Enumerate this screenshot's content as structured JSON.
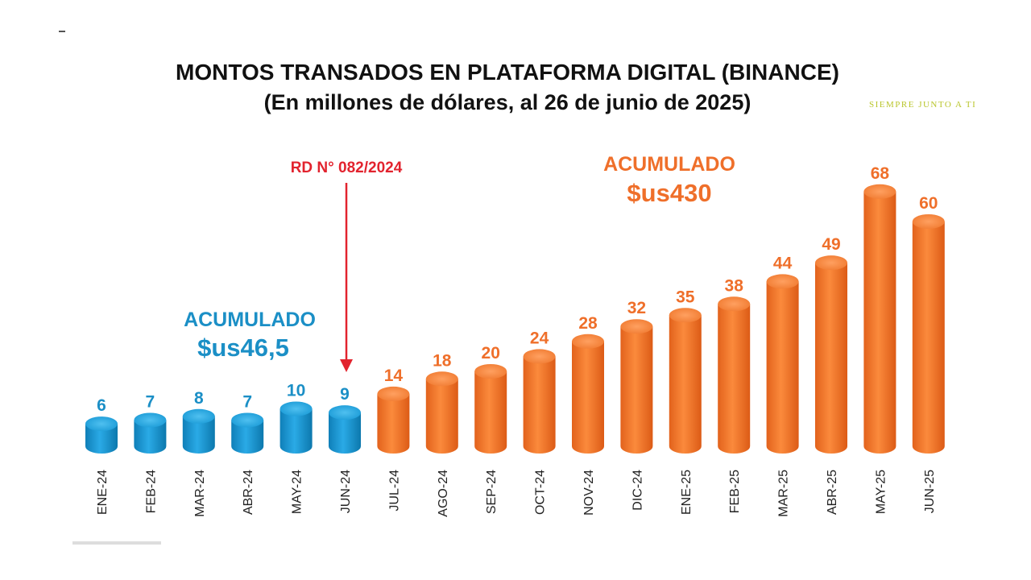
{
  "title": "MONTOS TRANSADOS EN PLATAFORMA DIGITAL (BINANCE)",
  "subtitle": "(En millones de dólares, al 26 de junio de 2025)",
  "slogan": "SIEMPRE JUNTO A TI",
  "annotations": {
    "rd_label": "RD N° 082/2024",
    "acum_blue_label": "ACUMULADO",
    "acum_blue_value": "$us46,5",
    "acum_orange_label": "ACUMULADO",
    "acum_orange_value": "$us430"
  },
  "colors": {
    "blue": "#1a9ad6",
    "orange": "#f07a30",
    "red": "#e2232e",
    "blue_text": "#1b8fc6",
    "orange_text": "#ef6f2a"
  },
  "chart_data": {
    "type": "bar",
    "title": "MONTOS TRANSADOS EN PLATAFORMA DIGITAL (BINANCE)",
    "subtitle": "(En millones de dólares, al 26 de junio de 2025)",
    "categories": [
      "ENE-24",
      "FEB-24",
      "MAR-24",
      "ABR-24",
      "MAY-24",
      "JUN-24",
      "JUL-24",
      "AGO-24",
      "SEP-24",
      "OCT-24",
      "NOV-24",
      "DIC-24",
      "ENE-25",
      "FEB-25",
      "MAR-25",
      "ABR-25",
      "MAY-25",
      "JUN-25"
    ],
    "values": [
      6,
      7,
      8,
      7,
      10,
      9,
      14,
      18,
      20,
      24,
      28,
      32,
      35,
      38,
      44,
      49,
      68,
      60
    ],
    "series_split": {
      "before_rd": 6,
      "after_rd": 12
    },
    "ylim": [
      0,
      70
    ],
    "xlabel": "",
    "ylabel": "",
    "grid": false
  }
}
